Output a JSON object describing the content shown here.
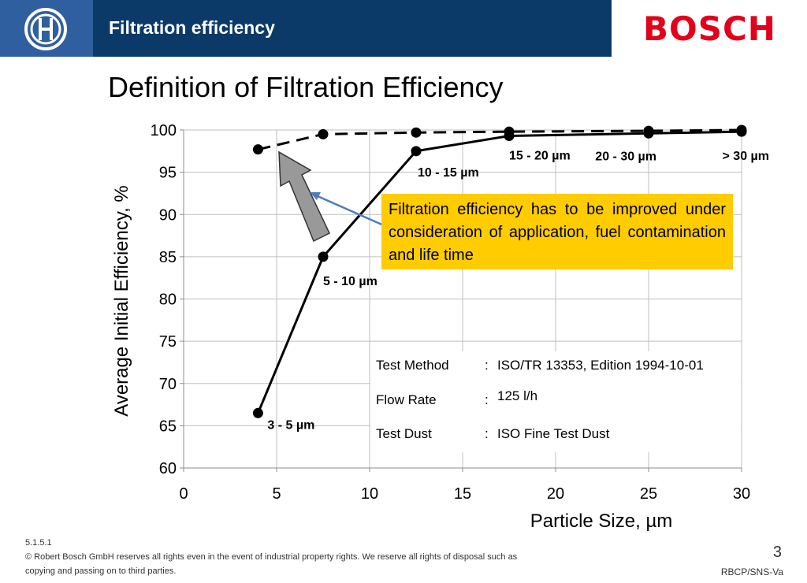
{
  "header": {
    "title": "Filtration efficiency",
    "brand": "BOSCH"
  },
  "page_title": "Definition of Filtration Efficiency",
  "chart_data": {
    "type": "line",
    "xlabel": "Particle Size, µm",
    "ylabel": "Average Initial Efficiency, %",
    "xlim": [
      0,
      30
    ],
    "ylim": [
      60,
      100
    ],
    "xticks": [
      0,
      5,
      10,
      15,
      20,
      25,
      30
    ],
    "yticks": [
      60,
      65,
      70,
      75,
      80,
      85,
      90,
      95,
      100
    ],
    "grid": true,
    "series": [
      {
        "style": "solid",
        "color": "#000000",
        "x": [
          4,
          7.5,
          12.5,
          17.5,
          25,
          30
        ],
        "y": [
          66.5,
          85,
          97.5,
          99.3,
          99.6,
          99.8
        ]
      },
      {
        "style": "dashed",
        "color": "#000000",
        "x": [
          4,
          7.5,
          12.5,
          17.5,
          25,
          30
        ],
        "y": [
          97.7,
          99.5,
          99.7,
          99.8,
          99.9,
          100
        ]
      }
    ],
    "range_labels": [
      {
        "text": "3 - 5 µm",
        "x": 4,
        "y": 66.5
      },
      {
        "text": "5 - 10 µm",
        "x": 7.5,
        "y": 85
      },
      {
        "text": "10 - 15 µm",
        "x": 12.5,
        "y": 97.5
      },
      {
        "text": "15 - 20 µm",
        "x": 17.5,
        "y": 99.3
      },
      {
        "text": "20 - 30 µm",
        "x": 25,
        "y": 99.6
      },
      {
        "text": "> 30 µm",
        "x": 30,
        "y": 99.8
      }
    ],
    "callout": {
      "text": "Filtration efficiency has to be improved under consideration of application, fuel contamination and life time",
      "background": "#ffcc00"
    },
    "test_info": [
      {
        "label": "Test Method",
        "value": "ISO/TR 13353, Edition 1994-10-01"
      },
      {
        "label": "Flow Rate",
        "value": "125 l/h"
      },
      {
        "label": "Test Dust",
        "value": "ISO Fine Test Dust"
      }
    ],
    "arrow_color": "#999999",
    "pointer_color": "#4a7ebb"
  },
  "footer": {
    "section": "5.1.5.1",
    "copyright_line1": "© Robert Bosch GmbH reserves all rights even in the event of industrial property rights. We reserve all rights of disposal such as",
    "copyright_line2": "copying and passing on to third parties.",
    "page_number": "3",
    "doc_id": "RBCP/SNS-Va"
  }
}
